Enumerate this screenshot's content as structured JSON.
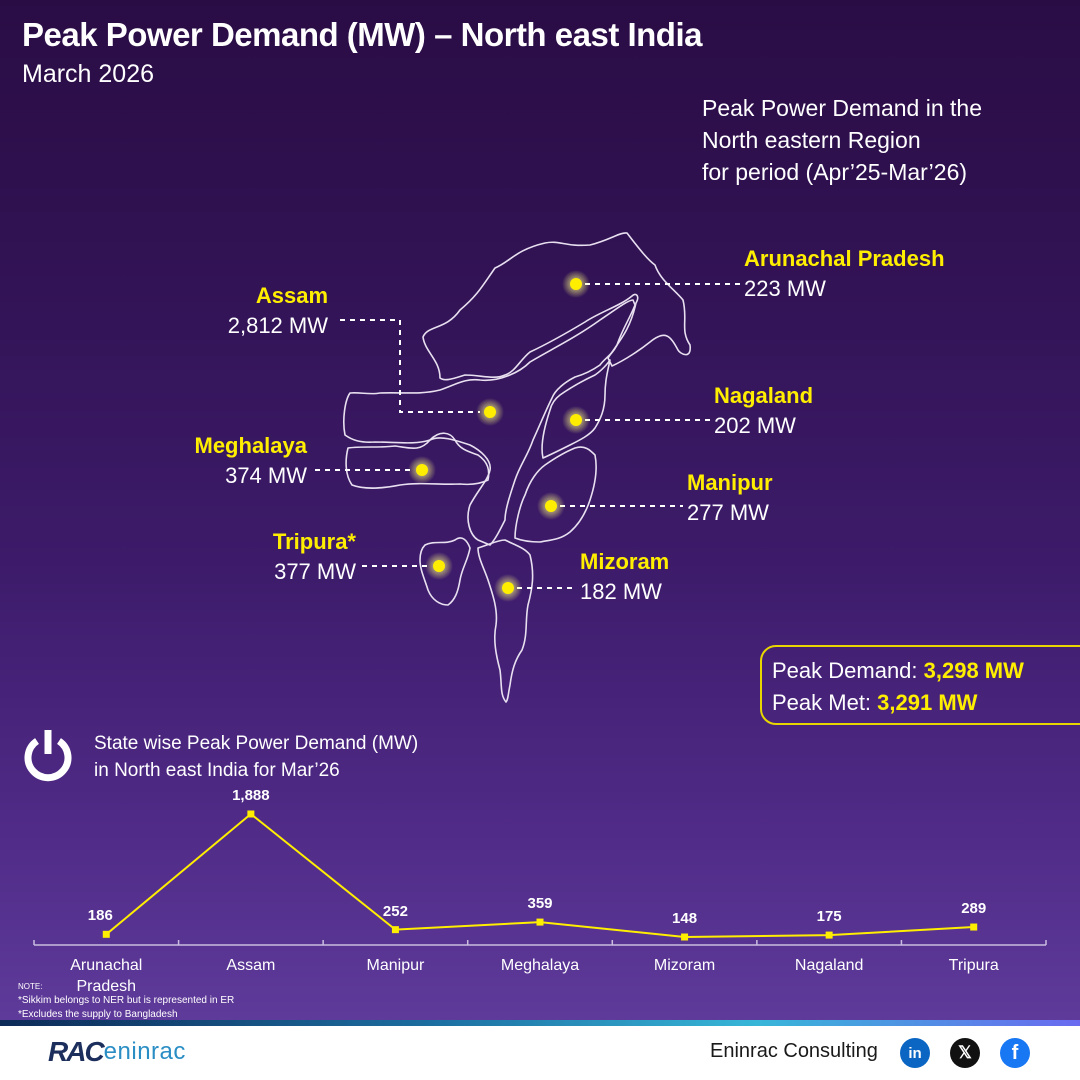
{
  "header": {
    "title": "Peak Power Demand (MW) – North east India",
    "subtitle": "March 2026"
  },
  "period_note": {
    "line1": "Peak Power Demand in the",
    "line2": "North eastern Region",
    "line3": "for period (Apr’25-Mar’26)"
  },
  "map": {
    "states": [
      {
        "name": "Arunachal Pradesh",
        "value": "223 MW"
      },
      {
        "name": "Assam",
        "value": "2,812 MW"
      },
      {
        "name": "Nagaland",
        "value": "202 MW"
      },
      {
        "name": "Meghalaya",
        "value": "374 MW"
      },
      {
        "name": "Manipur",
        "value": "277 MW"
      },
      {
        "name": "Tripura*",
        "value": "377 MW"
      },
      {
        "name": "Mizoram",
        "value": "182 MW"
      }
    ],
    "marker_color": "#ffee00"
  },
  "summary": {
    "demand_label": "Peak Demand: ",
    "demand_value": "3,298 MW",
    "met_label": "Peak Met: ",
    "met_value": "3,291 MW"
  },
  "chart_heading": {
    "line1": "State wise Peak Power Demand (MW)",
    "line2": "in North east India for Mar’26",
    "icon": "power-icon"
  },
  "chart_data": {
    "type": "line",
    "title": "State wise Peak Power Demand (MW) in North east India for Mar’26",
    "xlabel": "",
    "ylabel": "MW",
    "categories": [
      "Arunachal Pradesh",
      "Assam",
      "Manipur",
      "Meghalaya",
      "Mizoram",
      "Nagaland",
      "Tripura"
    ],
    "category_labels": [
      [
        "Arunachal",
        "Pradesh"
      ],
      [
        "Assam"
      ],
      [
        "Manipur"
      ],
      [
        "Meghalaya"
      ],
      [
        "Mizoram"
      ],
      [
        "Nagaland"
      ],
      [
        "Tripura"
      ]
    ],
    "values": [
      186,
      1888,
      252,
      359,
      148,
      175,
      289
    ],
    "value_labels": [
      "186",
      "1,888",
      "252",
      "359",
      "148",
      "175",
      "289"
    ],
    "series": [
      {
        "name": "Peak Demand (MW)",
        "values": [
          186,
          1888,
          252,
          359,
          148,
          175,
          289
        ],
        "color": "#ffee00"
      }
    ],
    "grid": false,
    "legend": "none",
    "ylim": [
      0,
      2000
    ]
  },
  "notes": {
    "header": "NOTE:",
    "items": [
      "*Sikkim belongs to NER but is represented in ER",
      "*Excludes the supply to Bangladesh"
    ]
  },
  "footer": {
    "logo_rac": "RAC",
    "logo_eninrac": "eninrac",
    "brand": "Eninrac Consulting",
    "social": [
      {
        "name": "linkedin-icon",
        "glyph": "in",
        "color": "#0a66c2"
      },
      {
        "name": "x-icon",
        "glyph": "𝕏",
        "color": "#111111"
      },
      {
        "name": "facebook-icon",
        "glyph": "f",
        "color": "#1877f2"
      }
    ]
  }
}
